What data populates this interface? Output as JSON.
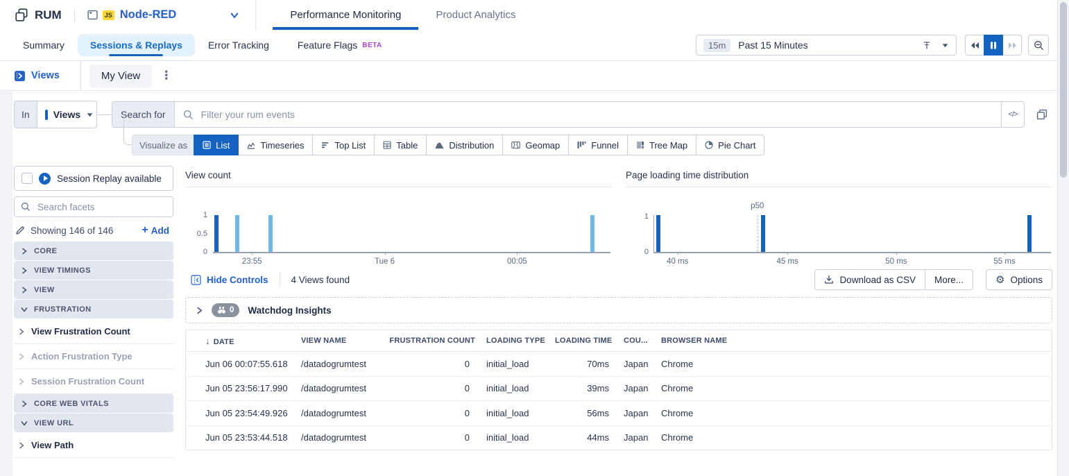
{
  "accent": {
    "blue": "#2560c9",
    "button_blue": "#1563c1",
    "bar_light": "#74b9e6",
    "bar_dark": "#1563c1",
    "beta_purple": "#a944ce"
  },
  "header": {
    "product": "RUM",
    "app": {
      "name": "Node-RED",
      "runtime_badge": "JS"
    },
    "tabs": [
      {
        "label": "Performance Monitoring",
        "active": true
      },
      {
        "label": "Product Analytics",
        "active": false
      }
    ]
  },
  "subnav": {
    "tabs": [
      {
        "label": "Summary"
      },
      {
        "label": "Sessions & Replays",
        "active": true
      },
      {
        "label": "Error Tracking"
      },
      {
        "label": "Feature Flags",
        "badge": "BETA"
      }
    ],
    "time": {
      "shortcut": "15m",
      "label": "Past 15 Minutes"
    }
  },
  "viewsbar": {
    "views_label": "Views",
    "current_view": "My View"
  },
  "query": {
    "scope_prefix": "In",
    "scope_value": "Views",
    "search_label": "Search for",
    "search_value": "",
    "search_placeholder": "Filter your rum events",
    "code_toggle": "</>"
  },
  "visualize": {
    "label": "Visualize as",
    "options": [
      {
        "label": "List",
        "icon": "list",
        "active": true
      },
      {
        "label": "Timeseries",
        "icon": "timeseries",
        "active": false
      },
      {
        "label": "Top List",
        "icon": "toplist",
        "active": false
      },
      {
        "label": "Table",
        "icon": "table",
        "active": false
      },
      {
        "label": "Distribution",
        "icon": "distribution",
        "active": false
      },
      {
        "label": "Geomap",
        "icon": "geomap",
        "active": false
      },
      {
        "label": "Funnel",
        "icon": "funnel",
        "active": false
      },
      {
        "label": "Tree Map",
        "icon": "treemap",
        "active": false
      },
      {
        "label": "Pie Chart",
        "icon": "pie",
        "active": false
      }
    ]
  },
  "sidebar": {
    "session_replay_label": "Session Replay available",
    "facet_search_placeholder": "Search facets",
    "showing": "Showing 146 of 146",
    "add_label": "Add",
    "groups": [
      {
        "label": "CORE",
        "expanded": false,
        "items": []
      },
      {
        "label": "VIEW TIMINGS",
        "expanded": false,
        "items": []
      },
      {
        "label": "VIEW",
        "expanded": false,
        "items": []
      },
      {
        "label": "FRUSTRATION",
        "expanded": true,
        "items": [
          {
            "label": "View Frustration Count",
            "emphasis": true
          },
          {
            "label": "Action Frustration Type",
            "emphasis": false
          },
          {
            "label": "Session Frustration Count",
            "emphasis": false
          }
        ]
      },
      {
        "label": "CORE WEB VITALS",
        "expanded": false,
        "items": []
      },
      {
        "label": "VIEW URL",
        "expanded": true,
        "items": [
          {
            "label": "View Path",
            "emphasis": true
          }
        ]
      }
    ]
  },
  "controls": {
    "hide": "Hide Controls",
    "found": "4 Views found",
    "download": "Download as CSV",
    "more": "More...",
    "options": "Options"
  },
  "watchdog": {
    "count": "0",
    "label": "Watchdog Insights"
  },
  "chart_data": [
    {
      "type": "bar",
      "title": "View count",
      "ylim": [
        0,
        1
      ],
      "grid": false,
      "y_axis_line": false,
      "y_ticks": [
        {
          "label": "1",
          "pct": 0
        },
        {
          "label": "0.5",
          "pct": 50
        },
        {
          "label": "0",
          "pct": 100
        }
      ],
      "x_ticks": [
        {
          "label": "23:55",
          "pct": 9.8
        },
        {
          "label": "Tue 6",
          "pct": 43.2
        },
        {
          "label": "00:05",
          "pct": 76.5
        }
      ],
      "bars": [
        {
          "x": "23:53",
          "value": 1,
          "pct": 0.4,
          "color": "#1563c1"
        },
        {
          "x": "23:54",
          "value": 1,
          "pct": 5.6,
          "color": "#74b9e6"
        },
        {
          "x": "23:56",
          "value": 1,
          "pct": 14,
          "color": "#74b9e6"
        },
        {
          "x": "00:07",
          "value": 1,
          "pct": 95,
          "color": "#74b9e6"
        }
      ]
    },
    {
      "type": "bar",
      "title": "Page loading time distribution",
      "ylim": [
        0,
        1
      ],
      "grid": false,
      "y_axis_line": true,
      "y_ticks": [
        {
          "label": "1",
          "pct": 4
        },
        {
          "label": "0",
          "pct": 100
        }
      ],
      "x_ticks": [
        {
          "label": "40 ms",
          "pct": 5.9
        },
        {
          "label": "45 ms",
          "pct": 33.6
        },
        {
          "label": "50 ms",
          "pct": 61
        },
        {
          "label": "55 ms",
          "pct": 88.3
        }
      ],
      "bars": [
        {
          "x": "39 ms",
          "value": 1,
          "pct": 0.5,
          "color": "#1563c1"
        },
        {
          "x": "44 ms",
          "value": 1,
          "pct": 27,
          "color": "#1563c1"
        },
        {
          "x": "56 ms",
          "value": 1,
          "pct": 94,
          "color": "#1563c1"
        }
      ],
      "annotation": {
        "label": "p50",
        "pct": 26
      }
    }
  ],
  "table": {
    "columns": [
      "DATE",
      "VIEW NAME",
      "FRUSTRATION COUNT",
      "LOADING TYPE",
      "LOADING TIME",
      "COU...",
      "BROWSER NAME"
    ],
    "rows": [
      {
        "marker": "#74b9e6",
        "date": "Jun 06 00:07:55.618",
        "view_name": "/datadogrumtest",
        "frustration_count": "0",
        "loading_type": "initial_load",
        "loading_time": "70ms",
        "country": "Japan",
        "browser": "Chrome"
      },
      {
        "marker": "#74b9e6",
        "date": "Jun 05 23:56:17.990",
        "view_name": "/datadogrumtest",
        "frustration_count": "0",
        "loading_type": "initial_load",
        "loading_time": "39ms",
        "country": "Japan",
        "browser": "Chrome"
      },
      {
        "marker": "#74b9e6",
        "date": "Jun 05 23:54:49.926",
        "view_name": "/datadogrumtest",
        "frustration_count": "0",
        "loading_type": "initial_load",
        "loading_time": "56ms",
        "country": "Japan",
        "browser": "Chrome"
      },
      {
        "marker": "#1563c1",
        "date": "Jun 05 23:53:44.518",
        "view_name": "/datadogrumtest",
        "frustration_count": "0",
        "loading_type": "initial_load",
        "loading_time": "44ms",
        "country": "Japan",
        "browser": "Chrome"
      }
    ]
  }
}
